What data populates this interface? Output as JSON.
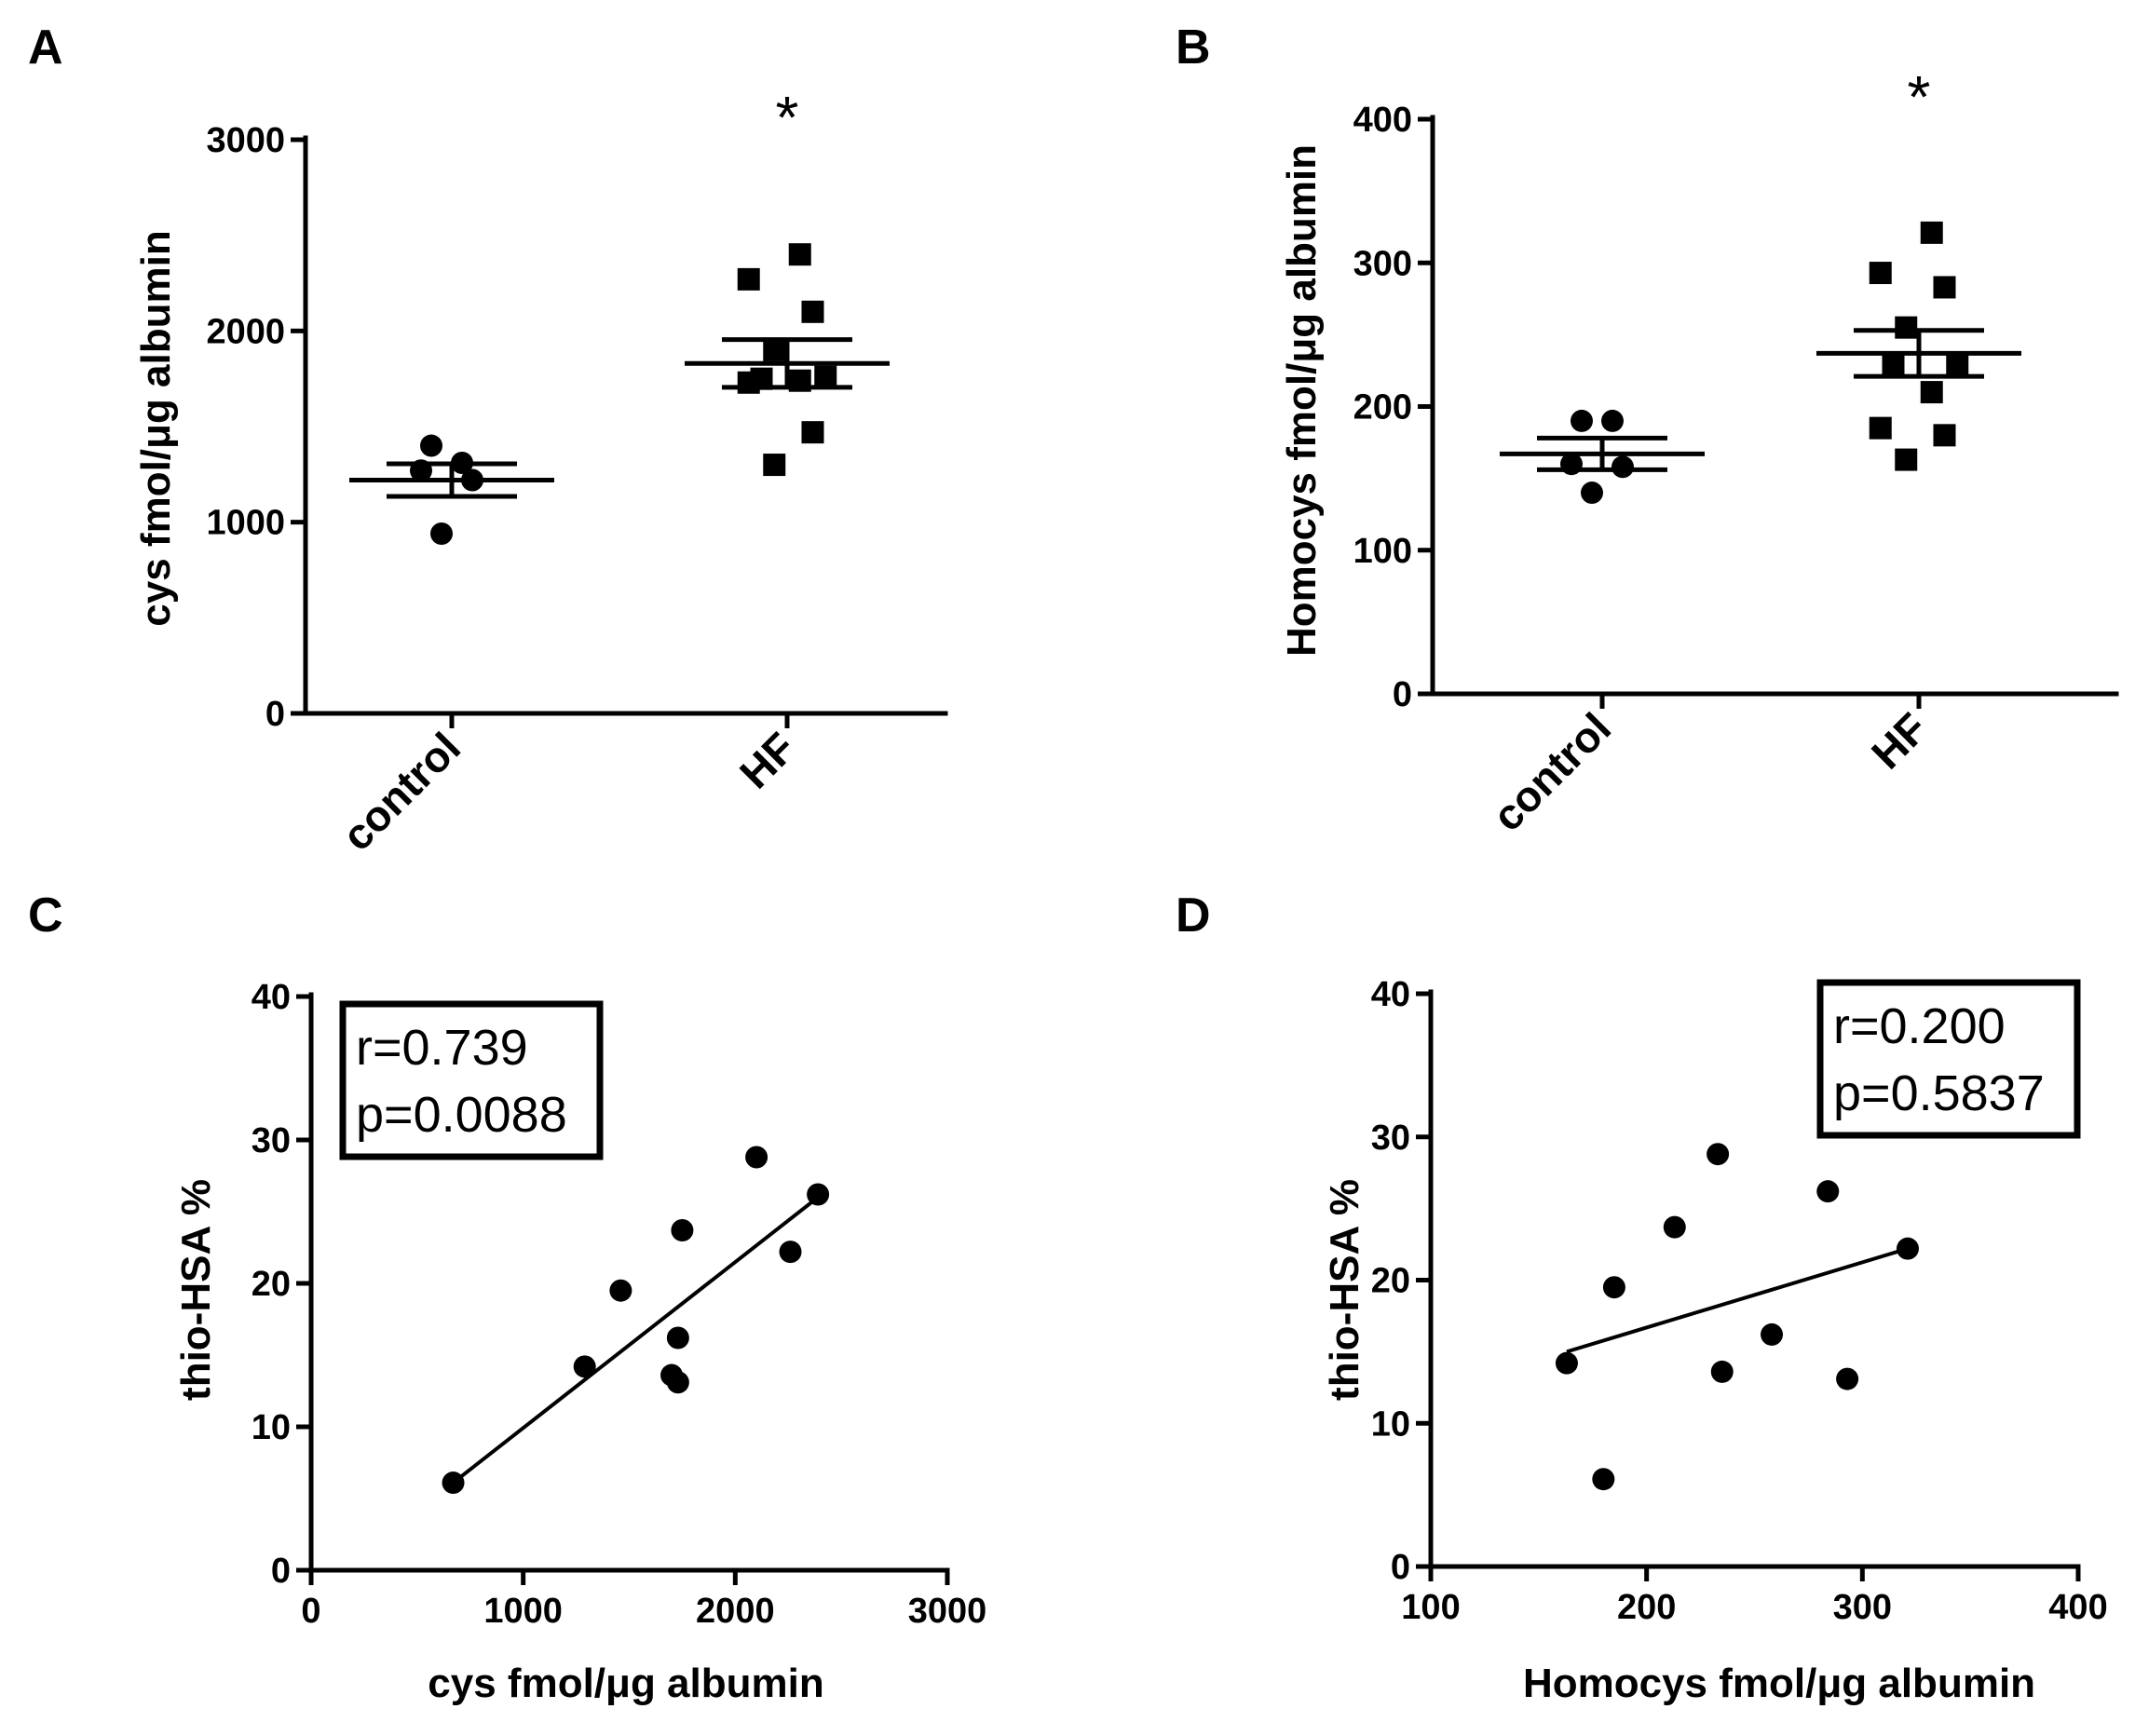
{
  "colors": {
    "ink": "#000000",
    "background": "#ffffff"
  },
  "chart_data": [
    {
      "panel": "A",
      "type": "scatter",
      "subtype": "dot-plot-mean-sem",
      "categories": [
        "control",
        "HF"
      ],
      "ylabel": "cys fmol/μg albumin",
      "xlabel": "",
      "ylim": [
        0,
        3000
      ],
      "yticks": [
        0,
        1000,
        2000,
        3000
      ],
      "grid": false,
      "series": [
        {
          "category": "control",
          "marker": "circle",
          "values": [
            940,
            1220,
            1270,
            1310,
            1400
          ],
          "mean": 1220,
          "sem": 85
        },
        {
          "category": "HF",
          "marker": "square",
          "values": [
            1300,
            1470,
            1730,
            1740,
            1750,
            1760,
            1900,
            2100,
            2270,
            2400
          ],
          "mean": 1830,
          "sem": 125
        }
      ],
      "annotations": [
        {
          "category": "HF",
          "text": "*"
        }
      ]
    },
    {
      "panel": "B",
      "type": "scatter",
      "subtype": "dot-plot-mean-sem",
      "categories": [
        "control",
        "HF"
      ],
      "ylabel": "Homocys fmol/μg albumin",
      "xlabel": "",
      "ylim": [
        0,
        400
      ],
      "yticks": [
        0,
        100,
        200,
        300,
        400
      ],
      "grid": false,
      "series": [
        {
          "category": "control",
          "marker": "circle",
          "values": [
            140,
            158,
            160,
            190,
            190
          ],
          "mean": 167,
          "sem": 11
        },
        {
          "category": "HF",
          "marker": "square",
          "values": [
            163,
            180,
            185,
            210,
            230,
            230,
            255,
            283,
            293,
            321
          ],
          "mean": 237,
          "sem": 16
        }
      ],
      "annotations": [
        {
          "category": "HF",
          "text": "*"
        }
      ]
    },
    {
      "panel": "C",
      "type": "scatter",
      "xlabel": "cys fmol/μg albumin",
      "ylabel": "thio-HSA %",
      "xlim": [
        0,
        3000
      ],
      "ylim": [
        0,
        40
      ],
      "xticks": [
        0,
        1000,
        2000,
        3000
      ],
      "yticks": [
        0,
        10,
        20,
        30,
        40
      ],
      "grid": false,
      "points": [
        {
          "x": 670,
          "y": 6.1
        },
        {
          "x": 1290,
          "y": 14.2
        },
        {
          "x": 1460,
          "y": 19.5
        },
        {
          "x": 1700,
          "y": 13.6
        },
        {
          "x": 1730,
          "y": 13.1
        },
        {
          "x": 1730,
          "y": 16.2
        },
        {
          "x": 1750,
          "y": 23.7
        },
        {
          "x": 2100,
          "y": 28.8
        },
        {
          "x": 2260,
          "y": 22.2
        },
        {
          "x": 2390,
          "y": 26.2
        }
      ],
      "fit_line": {
        "x": [
          670,
          2390
        ],
        "y": [
          6.1,
          26.0
        ]
      },
      "stats": {
        "r": "r=0.739",
        "p": "p=0.0088"
      },
      "stats_placement": "top-left"
    },
    {
      "panel": "D",
      "type": "scatter",
      "xlabel": "Homocys fmol/μg albumin",
      "ylabel": "thio-HSA %",
      "xlim": [
        100,
        400
      ],
      "ylim": [
        0,
        40
      ],
      "xticks": [
        100,
        200,
        300,
        400
      ],
      "yticks": [
        0,
        10,
        20,
        30,
        40
      ],
      "grid": false,
      "points": [
        {
          "x": 163,
          "y": 14.2
        },
        {
          "x": 180,
          "y": 6.1
        },
        {
          "x": 185,
          "y": 19.5
        },
        {
          "x": 213,
          "y": 23.7
        },
        {
          "x": 233,
          "y": 28.8
        },
        {
          "x": 235,
          "y": 13.6
        },
        {
          "x": 258,
          "y": 16.2
        },
        {
          "x": 284,
          "y": 26.2
        },
        {
          "x": 293,
          "y": 13.1
        },
        {
          "x": 321,
          "y": 22.2
        }
      ],
      "fit_line": {
        "x": [
          163,
          321
        ],
        "y": [
          15.0,
          22.2
        ]
      },
      "stats": {
        "r": "r=0.200",
        "p": "p=0.5837"
      },
      "stats_placement": "top-right"
    }
  ]
}
